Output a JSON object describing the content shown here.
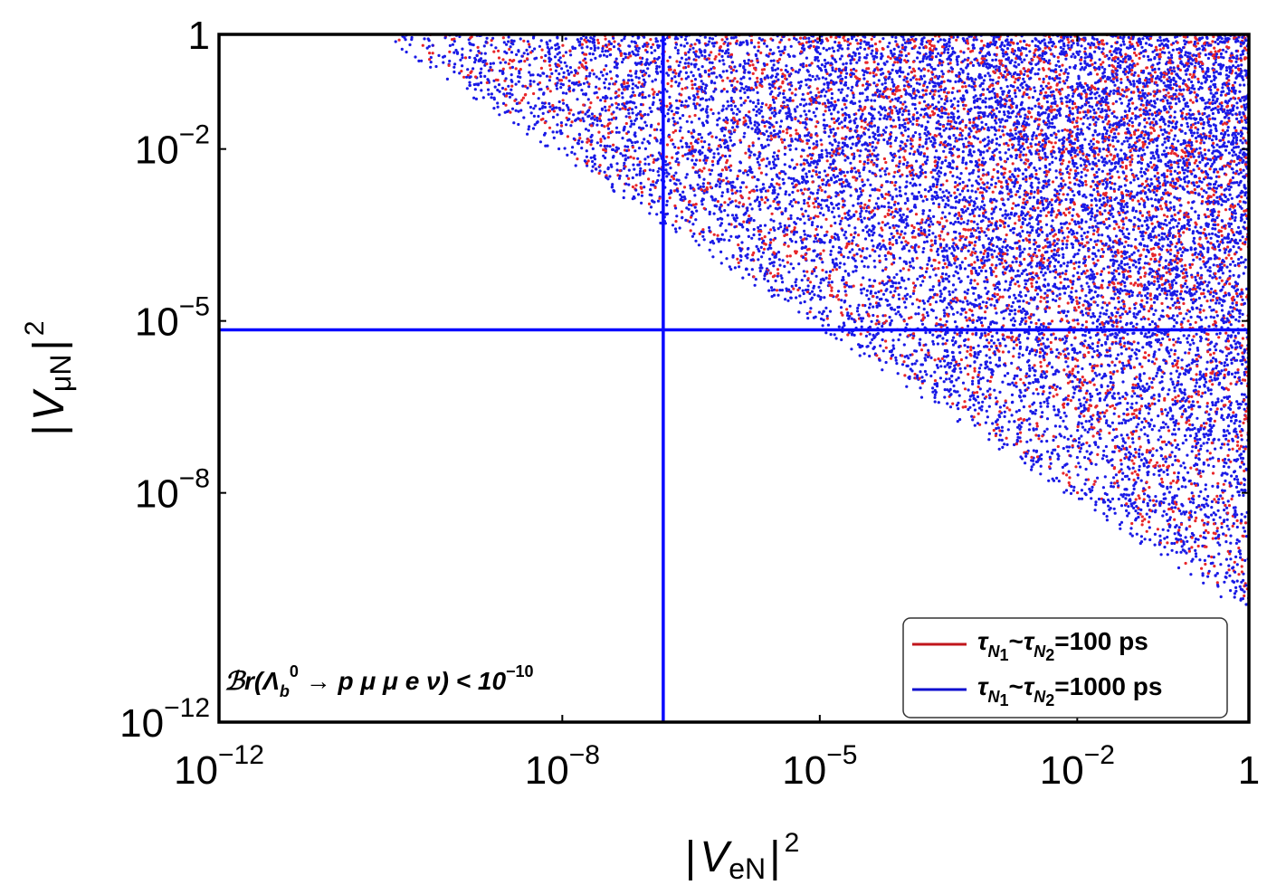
{
  "chart_data": {
    "type": "scatter",
    "x_scale": "log",
    "y_scale": "log",
    "xlim": [
      1e-12,
      1
    ],
    "ylim": [
      1e-12,
      1
    ],
    "x_ticks": [
      {
        "value": 1e-12,
        "base": "10",
        "exp": "−12"
      },
      {
        "value": 1e-08,
        "base": "10",
        "exp": "−8"
      },
      {
        "value": 1e-05,
        "base": "10",
        "exp": "−5"
      },
      {
        "value": 0.01,
        "base": "10",
        "exp": "−2"
      },
      {
        "value": 1,
        "base": "1",
        "exp": ""
      }
    ],
    "y_ticks": [
      {
        "value": 1,
        "base": "1",
        "exp": ""
      },
      {
        "value": 0.01,
        "base": "10",
        "exp": "−2"
      },
      {
        "value": 1e-05,
        "base": "10",
        "exp": "−5"
      },
      {
        "value": 1e-08,
        "base": "10",
        "exp": "−8"
      },
      {
        "value": 1e-12,
        "base": "10",
        "exp": "−12"
      }
    ],
    "xlabel": {
      "bar_left": "|",
      "symbol": "V",
      "sub": "eN",
      "bar_right": "|",
      "sup": "2"
    },
    "ylabel": {
      "bar_left": "|",
      "symbol": "V",
      "sub": "μN",
      "bar_right": "|",
      "sup": "2"
    },
    "region_boundary": "x·y ≥ 1e-10",
    "series": [
      {
        "name": "τN1~τN2=100 ps",
        "color": "#e8262a",
        "legend_color": "#c0151b",
        "density": "sampled points in the allowed region"
      },
      {
        "name": "τN1~τN2=1000 ps",
        "color": "#1a1ae6",
        "legend_color": "#0c0ccf",
        "density": "sampled points in the allowed region, extending slightly further toward the boundary"
      }
    ],
    "reference_lines": [
      {
        "orientation": "vertical",
        "x": 1.5e-07,
        "color": "#0a0aff"
      },
      {
        "orientation": "horizontal",
        "y": 7e-06,
        "color": "#0a0aff"
      }
    ],
    "legend": {
      "placement": "bottom-right",
      "entries": [
        {
          "tau": "τ",
          "n": "N",
          "i1": "1",
          "tilde": "~",
          "i2": "2",
          "value": "=100 ps",
          "color": "#c0151b"
        },
        {
          "tau": "τ",
          "n": "N",
          "i1": "1",
          "tilde": "~",
          "i2": "2",
          "value": "=1000 ps",
          "color": "#0c0ccf"
        }
      ]
    },
    "annotation": {
      "placement": "bottom-left",
      "br": "ℬr(Λ",
      "b_sub": "b",
      "zero_sup": "0",
      "decay": " → p μ μ e ν) < 10",
      "exp": "−10"
    }
  }
}
